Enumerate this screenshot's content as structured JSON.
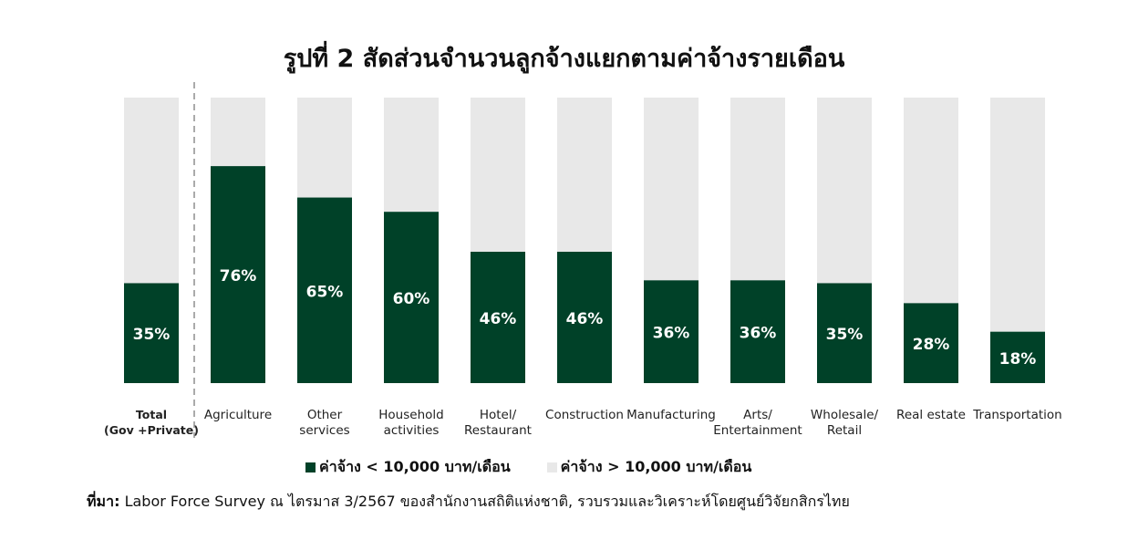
{
  "title": "รูปที่ 2 สัดส่วนจำนวนลูกจ้างแยกตามค่าจ้างรายเดือน",
  "colors": {
    "low": "#004128",
    "high": "#e8e8e8",
    "divider": "#aaaaaa"
  },
  "legend": {
    "low_label": "ค่าจ้าง < 10,000 บาท/เดือน",
    "high_label": "ค่าจ้าง > 10,000 บาท/เดือน"
  },
  "source": {
    "label": "ที่มา:",
    "text": " Labor Force Survey ณ ไตรมาส 3/2567  ของสำนักงานสถิติแห่งชาติ, รวบรวมและวิเคราะห์โดยศูนย์วิจัยกสิกรไทย"
  },
  "chart_data": {
    "type": "bar",
    "stacked": true,
    "title": "รูปที่ 2 สัดส่วนจำนวนลูกจ้างแยกตามค่าจ้างรายเดือน",
    "ylim": [
      0,
      100
    ],
    "categories": [
      [
        "Total",
        "(Gov +Private)"
      ],
      [
        "Agriculture"
      ],
      [
        "Other",
        "services"
      ],
      [
        "Household",
        "activities"
      ],
      [
        "Hotel/",
        "Restaurant"
      ],
      [
        "Construction"
      ],
      [
        "Manufacturing"
      ],
      [
        "Arts/",
        "Entertainment"
      ],
      [
        "Wholesale/",
        "Retail"
      ],
      [
        "Real estate"
      ],
      [
        "Transportation"
      ]
    ],
    "series": [
      {
        "name": "ค่าจ้าง < 10,000 บาท/เดือน",
        "values": [
          35,
          76,
          65,
          60,
          46,
          46,
          36,
          36,
          35,
          28,
          18
        ],
        "labels": [
          "35%",
          "76%",
          "65%",
          "60%",
          "46%",
          "46%",
          "36%",
          "36%",
          "35%",
          "28%",
          "18%"
        ]
      },
      {
        "name": "ค่าจ้าง > 10,000 บาท/เดือน",
        "values": [
          65,
          24,
          35,
          40,
          54,
          54,
          64,
          64,
          65,
          72,
          82
        ]
      }
    ]
  }
}
